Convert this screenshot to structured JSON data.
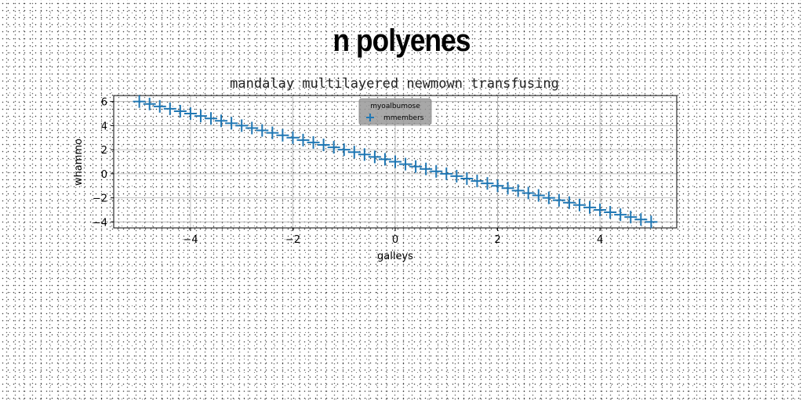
{
  "suptitle": "n polyenes",
  "chart_data": {
    "type": "scatter",
    "title": "mandalay multilayered newmown transfusing",
    "xlabel": "galleys",
    "ylabel": "whammo",
    "xlim": [
      -5.5,
      5.5
    ],
    "ylim": [
      -4.5,
      6.5
    ],
    "xticks": [
      -4,
      -2,
      0,
      2,
      4
    ],
    "xtick_labels": [
      "−4",
      "−2",
      "0",
      "2",
      "4"
    ],
    "yticks": [
      -4,
      -2,
      0,
      2,
      4,
      6
    ],
    "ytick_labels": [
      "−4",
      "−2",
      "0",
      "2",
      "4",
      "6"
    ],
    "grid": true,
    "legend": {
      "title": "myoalbumose",
      "placement": "top-center"
    },
    "marker": "+",
    "color": "#1f77b4",
    "series": [
      {
        "name": "mmembers",
        "x": [
          -5,
          -4.8,
          -4.6,
          -4.4,
          -4.2,
          -4,
          -3.8,
          -3.6,
          -3.4,
          -3.2,
          -3,
          -2.8,
          -2.6,
          -2.4,
          -2.2,
          -2,
          -1.8,
          -1.6,
          -1.4,
          -1.2,
          -1,
          -0.8,
          -0.6,
          -0.4,
          -0.2,
          0,
          0.2,
          0.4,
          0.6,
          0.8,
          1,
          1.2,
          1.4,
          1.6,
          1.8,
          2,
          2.2,
          2.4,
          2.6,
          2.8,
          3,
          3.2,
          3.4,
          3.6,
          3.8,
          4,
          4.2,
          4.4,
          4.6,
          4.8,
          5
        ],
        "y": [
          6,
          5.8,
          5.6,
          5.4,
          5.2,
          5,
          4.8,
          4.6,
          4.4,
          4.2,
          4,
          3.8,
          3.6,
          3.4,
          3.2,
          3,
          2.8,
          2.6,
          2.4,
          2.2,
          2,
          1.8,
          1.6,
          1.4,
          1.2,
          1,
          0.8,
          0.6,
          0.4,
          0.2,
          0,
          -0.2,
          -0.4,
          -0.6,
          -0.8,
          -1,
          -1.2,
          -1.4,
          -1.6,
          -1.8,
          -2,
          -2.2,
          -2.4,
          -2.6,
          -2.8,
          -3,
          -3.2,
          -3.4,
          -3.6,
          -3.8,
          -4
        ]
      }
    ]
  }
}
